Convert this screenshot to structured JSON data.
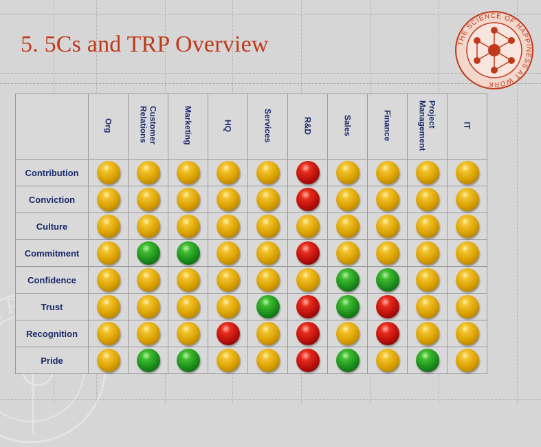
{
  "slide": {
    "title": "5. 5Cs and TRP Overview"
  },
  "logo": {
    "text": "THE SCIENCE OF HAPPINESS AT WORK",
    "icon": "network-molecule-icon",
    "color": "#c0391b"
  },
  "watermark": {
    "text": "PENERC",
    "icon": "seal-icon"
  },
  "legend_colors": {
    "amber": "#d9a000",
    "green": "#18891a",
    "red": "#b50e0a"
  },
  "table": {
    "columns": [
      "Org",
      "Customer\nRelations",
      "Marketing",
      "HQ",
      "Services",
      "R&D",
      "Sales",
      "Finance",
      "Project\nManagement",
      "IT"
    ],
    "rows": [
      {
        "label": "Contribution",
        "status": [
          "amber",
          "amber",
          "amber",
          "amber",
          "amber",
          "red",
          "amber",
          "amber",
          "amber",
          "amber"
        ]
      },
      {
        "label": "Conviction",
        "status": [
          "amber",
          "amber",
          "amber",
          "amber",
          "amber",
          "red",
          "amber",
          "amber",
          "amber",
          "amber"
        ]
      },
      {
        "label": "Culture",
        "status": [
          "amber",
          "amber",
          "amber",
          "amber",
          "amber",
          "amber",
          "amber",
          "amber",
          "amber",
          "amber"
        ]
      },
      {
        "label": "Commitment",
        "status": [
          "amber",
          "green",
          "green",
          "amber",
          "amber",
          "red",
          "amber",
          "amber",
          "amber",
          "amber"
        ]
      },
      {
        "label": "Confidence",
        "status": [
          "amber",
          "amber",
          "amber",
          "amber",
          "amber",
          "amber",
          "green",
          "green",
          "amber",
          "amber"
        ]
      },
      {
        "label": "Trust",
        "status": [
          "amber",
          "amber",
          "amber",
          "amber",
          "green",
          "red",
          "green",
          "red",
          "amber",
          "amber"
        ]
      },
      {
        "label": "Recognition",
        "status": [
          "amber",
          "amber",
          "amber",
          "red",
          "amber",
          "red",
          "amber",
          "red",
          "amber",
          "amber"
        ]
      },
      {
        "label": "Pride",
        "status": [
          "amber",
          "green",
          "green",
          "amber",
          "amber",
          "red",
          "green",
          "amber",
          "green",
          "amber"
        ]
      }
    ]
  }
}
